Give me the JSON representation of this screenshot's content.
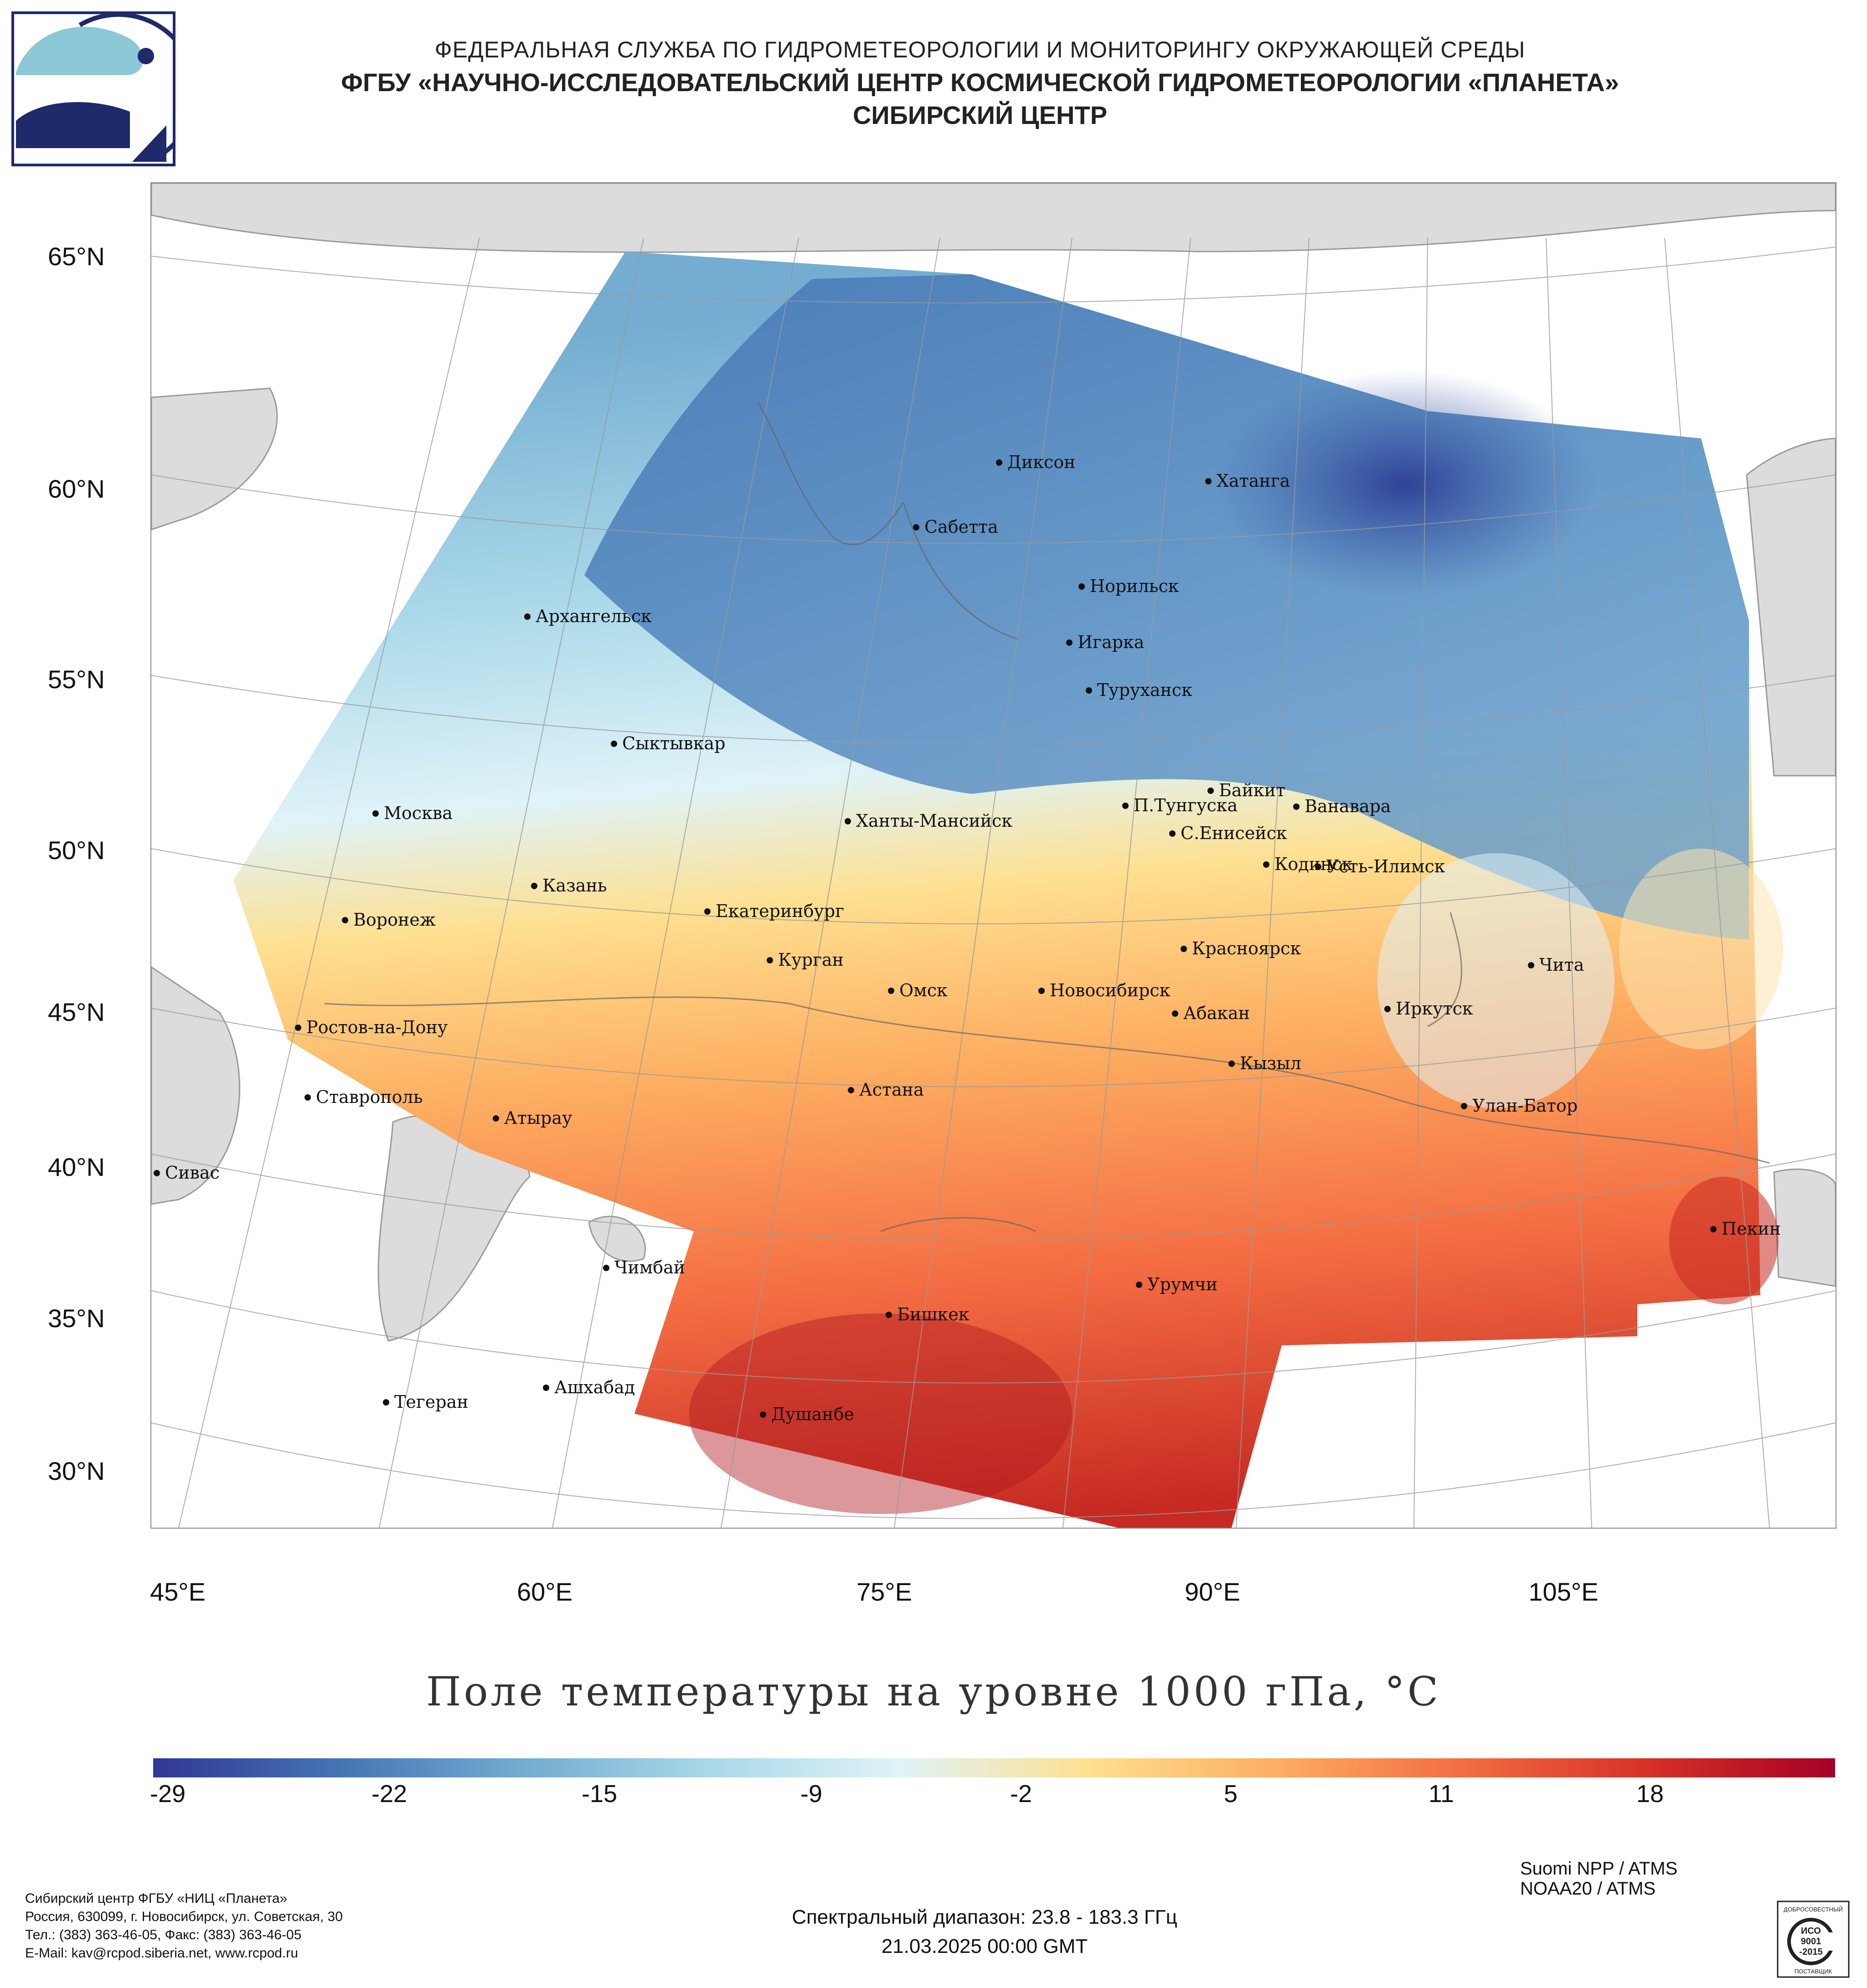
{
  "header": {
    "agency": "ФЕДЕРАЛЬНАЯ СЛУЖБА ПО ГИДРОМЕТЕОРОЛОГИИ И МОНИТОРИНГУ ОКРУЖАЮЩЕЙ СРЕДЫ",
    "center": "ФГБУ «НАУЧНО-ИССЛЕДОВАТЕЛЬСКИЙ ЦЕНТР КОСМИЧЕСКОЙ ГИДРОМЕТЕОРОЛОГИИ «ПЛАНЕТА»",
    "branch": "СИБИРСКИЙ ЦЕНТР"
  },
  "map": {
    "title": "Поле температуры на уровне 1000 гПа, °C",
    "lat_labels": [
      "65°N",
      "60°N",
      "55°N",
      "50°N",
      "45°N",
      "40°N",
      "35°N",
      "30°N"
    ],
    "lon_labels": [
      "45°E",
      "60°E",
      "75°E",
      "90°E",
      "105°E"
    ],
    "cities": [
      {
        "name": "Диксон"
      },
      {
        "name": "Хатанга"
      },
      {
        "name": "Сабетта"
      },
      {
        "name": "Норильск"
      },
      {
        "name": "Архангельск"
      },
      {
        "name": "Игарка"
      },
      {
        "name": "Туруханск"
      },
      {
        "name": "Сыктывкар"
      },
      {
        "name": "Байкит"
      },
      {
        "name": "Москва"
      },
      {
        "name": "П.Тунгуска"
      },
      {
        "name": "Ванавара"
      },
      {
        "name": "Ханты-Мансийск"
      },
      {
        "name": "С.Енисейск"
      },
      {
        "name": "Кодинск"
      },
      {
        "name": "Усть-Илимск"
      },
      {
        "name": "Казань"
      },
      {
        "name": "Екатеринбург"
      },
      {
        "name": "Воронеж"
      },
      {
        "name": "Красноярск"
      },
      {
        "name": "Курган"
      },
      {
        "name": "Чита"
      },
      {
        "name": "Омск"
      },
      {
        "name": "Новосибирск"
      },
      {
        "name": "Иркутск"
      },
      {
        "name": "Абакан"
      },
      {
        "name": "Ростов-на-Дону"
      },
      {
        "name": "Кызыл"
      },
      {
        "name": "Астана"
      },
      {
        "name": "Ставрополь"
      },
      {
        "name": "Улан-Батор"
      },
      {
        "name": "Атырау"
      },
      {
        "name": "Сивас"
      },
      {
        "name": "Пекин"
      },
      {
        "name": "Чимбай"
      },
      {
        "name": "Урумчи"
      },
      {
        "name": "Бишкек"
      },
      {
        "name": "Ашхабад"
      },
      {
        "name": "Тегеран"
      },
      {
        "name": "Душанбе"
      }
    ]
  },
  "colorbar": {
    "ticks": [
      "-29",
      "-22",
      "-15",
      "-9",
      "-2",
      "5",
      "11",
      "18"
    ],
    "colors": [
      "#313695",
      "#4575b4",
      "#74add1",
      "#abd9e9",
      "#e0f3f8",
      "#fee090",
      "#fdae61",
      "#f46d43",
      "#d73027",
      "#a50026"
    ]
  },
  "footer": {
    "org_lines": [
      "Сибирский центр ФГБУ «НИЦ «Планета»",
      "Россия, 630099, г. Новосибирск, ул. Советская, 30",
      "Тел.: (383) 363-46-05, Факс: (383) 363-46-05",
      "E-Mail: kav@rcpod.siberia.net, www.rcpod.ru"
    ],
    "spectral_range": "Спектральный диапазон: 23.8 - 183.3 ГГц",
    "datetime": "21.03.2025 00:00 GMT",
    "satellites": [
      "Suomi NPP / ATMS",
      "NOAA20 / ATMS"
    ]
  },
  "iso_badge": {
    "top": "ДОБРОСОВЕСТНЫЙ",
    "lines": [
      "ИСО",
      "9001",
      "-2015"
    ],
    "bottom": "ПОСТАВЩИК"
  }
}
